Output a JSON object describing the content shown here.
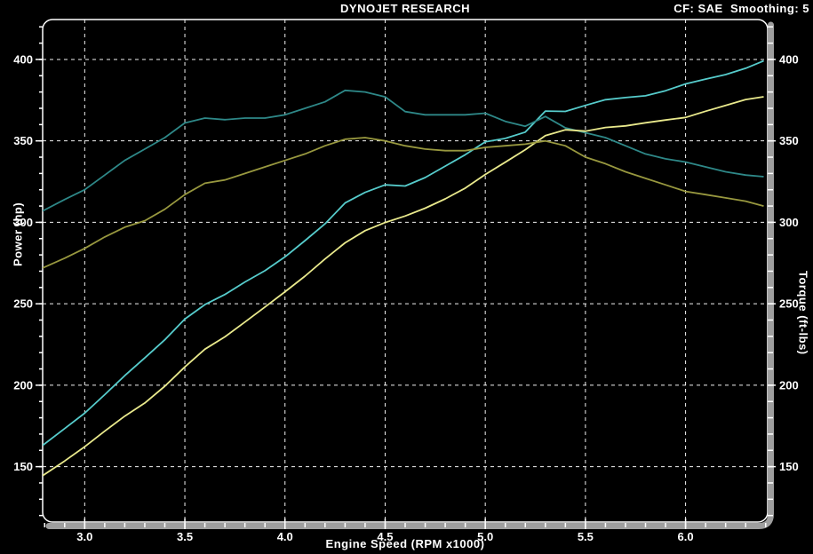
{
  "chart_data": {
    "type": "line",
    "title": "DYNOJET RESEARCH",
    "corner_text": "CF: SAE  Smoothing: 5",
    "xlabel": "Engine Speed (RPM x1000)",
    "ylabel_left": "Power (hp)",
    "ylabel_right": "Torque (ft-lbs)",
    "x_range": [
      2.79,
      6.41
    ],
    "y_range": [
      116,
      424.5
    ],
    "x_major_ticks": [
      3.0,
      3.5,
      4.0,
      4.5,
      5.0,
      5.5,
      6.0
    ],
    "x_minor_step": 0.1,
    "y_major_ticks": [
      150,
      200,
      250,
      300,
      350,
      400
    ],
    "y_minor_step": 10,
    "grid": true,
    "legend_position": "none",
    "colors": {
      "background": "#000000",
      "grid": "#f2f2f2",
      "frame": "#ffffff",
      "axis_bar": "#9e9e9e",
      "text": "#ffffff",
      "run1_power": "#56cccc",
      "run1_torque": "#2e8888",
      "run2_power": "#e9e98c",
      "run2_torque": "#98983f"
    },
    "x": [
      2.79,
      2.9,
      3.0,
      3.1,
      3.2,
      3.3,
      3.4,
      3.5,
      3.6,
      3.7,
      3.8,
      3.9,
      4.0,
      4.1,
      4.2,
      4.3,
      4.4,
      4.5,
      4.6,
      4.7,
      4.8,
      4.9,
      5.0,
      5.1,
      5.2,
      5.3,
      5.4,
      5.5,
      5.6,
      5.7,
      5.8,
      5.9,
      6.0,
      6.1,
      6.2,
      6.3,
      6.39
    ],
    "series": [
      {
        "name": "run1-power-hp",
        "color_key": "run1_power",
        "values": [
          163.1,
          173.4,
          182.8,
          194.2,
          205.9,
          216.8,
          227.9,
          240.6,
          249.5,
          255.7,
          263.4,
          270.3,
          278.8,
          288.8,
          299.1,
          311.9,
          318.4,
          323.0,
          322.3,
          327.5,
          334.5,
          341.5,
          349.4,
          351.5,
          355.4,
          368.3,
          368.1,
          371.8,
          375.3,
          376.6,
          377.7,
          380.8,
          385.0,
          387.9,
          390.7,
          394.6,
          399.1
        ]
      },
      {
        "name": "run1-torque-ftlbs",
        "color_key": "run1_torque",
        "values": [
          307,
          314,
          320,
          329,
          338,
          345,
          352,
          361,
          364,
          363,
          364,
          364,
          366,
          370,
          374,
          381,
          380,
          377,
          368,
          366,
          366,
          366,
          367,
          362,
          359,
          365,
          358,
          355,
          352,
          347,
          342,
          339,
          337,
          334,
          331,
          329,
          328
        ]
      },
      {
        "name": "run2-power-hp",
        "color_key": "run2_power",
        "values": [
          144.5,
          153.5,
          162.2,
          171.8,
          181.0,
          189.1,
          199.4,
          211.2,
          222.1,
          229.7,
          238.8,
          248.0,
          257.4,
          267.0,
          277.5,
          287.4,
          294.9,
          299.9,
          303.9,
          308.7,
          314.4,
          321.0,
          329.4,
          336.9,
          344.6,
          353.2,
          356.8,
          356.0,
          358.2,
          359.2,
          361.1,
          362.8,
          364.4,
          368.2,
          371.8,
          375.4,
          377.1
        ]
      },
      {
        "name": "run2-torque-ftlbs",
        "color_key": "run2_torque",
        "values": [
          272,
          278,
          284,
          291,
          297,
          301,
          308,
          317,
          324,
          326,
          330,
          334,
          338,
          342,
          347,
          351,
          352,
          350,
          347,
          345,
          344,
          344,
          346,
          347,
          348,
          350,
          347,
          340,
          336,
          331,
          327,
          323,
          319,
          317,
          315,
          313,
          310
        ]
      }
    ]
  }
}
